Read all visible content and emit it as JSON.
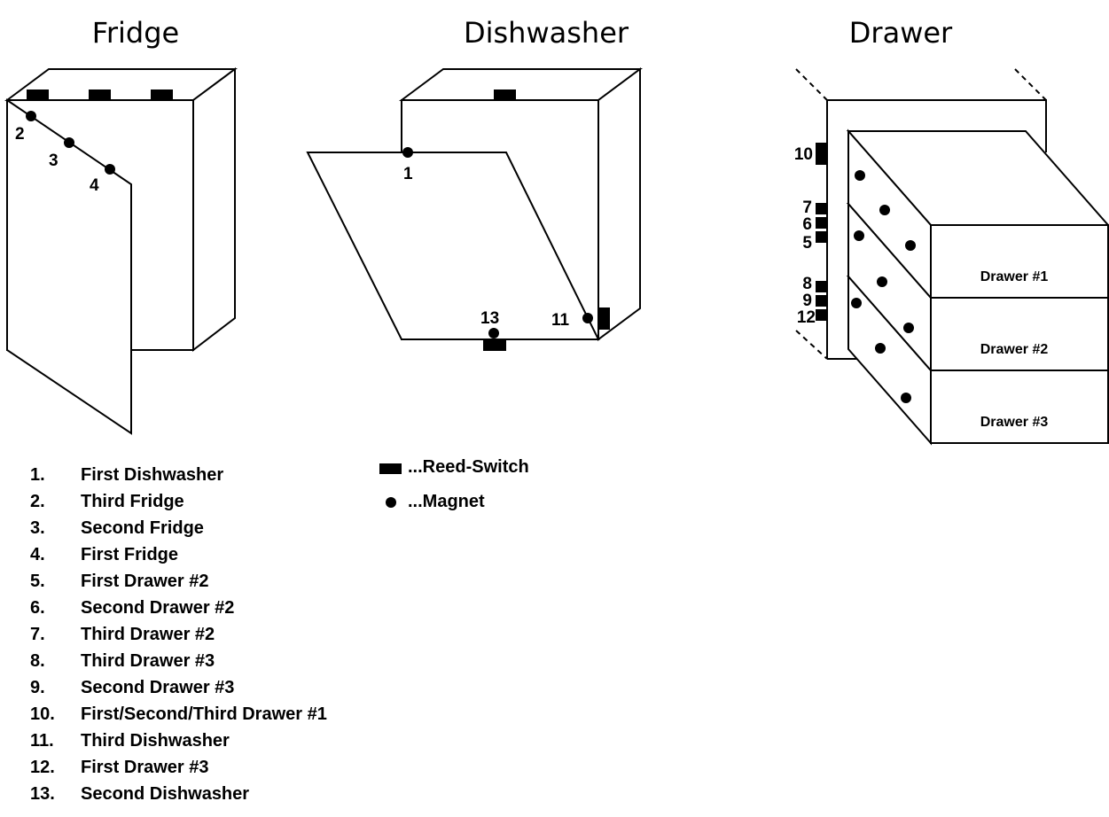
{
  "titles": {
    "fridge": "Fridge",
    "dishwasher": "Dishwasher",
    "drawer": "Drawer"
  },
  "fridge_labels": [
    "2",
    "3",
    "4"
  ],
  "dishwasher_labels": [
    "1",
    "13",
    "11"
  ],
  "drawer_labels": [
    "10",
    "7",
    "6",
    "5",
    "8",
    "9",
    "12"
  ],
  "drawer_names": [
    "Drawer #1",
    "Drawer #2",
    "Drawer #3"
  ],
  "legend": {
    "reed_switch": "...Reed-Switch",
    "magnet": "...Magnet"
  },
  "list": [
    {
      "num": "1.",
      "text": "First Dishwasher"
    },
    {
      "num": "2.",
      "text": "Third Fridge"
    },
    {
      "num": "3.",
      "text": "Second Fridge"
    },
    {
      "num": "4.",
      "text": "First Fridge"
    },
    {
      "num": "5.",
      "text": "First Drawer #2"
    },
    {
      "num": "6.",
      "text": "Second Drawer #2"
    },
    {
      "num": "7.",
      "text": "Third Drawer #2"
    },
    {
      "num": "8.",
      "text": "Third Drawer #3"
    },
    {
      "num": "9.",
      "text": "Second Drawer #3"
    },
    {
      "num": "10.",
      "text": "First/Second/Third Drawer #1"
    },
    {
      "num": "11.",
      "text": "Third Dishwasher"
    },
    {
      "num": "12.",
      "text": "First Drawer #3"
    },
    {
      "num": "13.",
      "text": "Second Dishwasher"
    }
  ]
}
